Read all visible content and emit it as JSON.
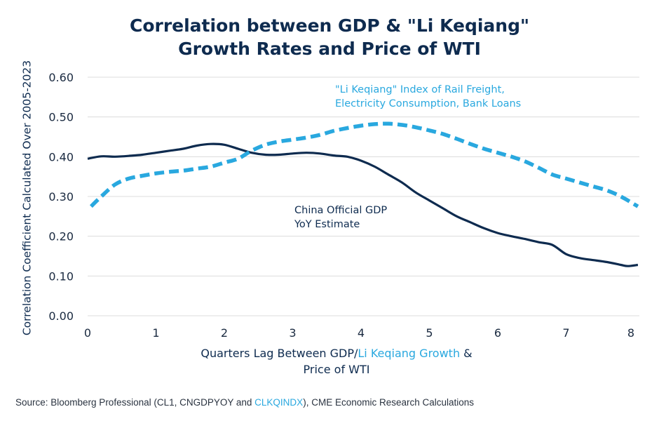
{
  "colors": {
    "navy": "#0e2b4f",
    "cyan": "#29a8df",
    "grid": "#dcdcdc"
  },
  "chart_data": {
    "type": "line",
    "title_line1": "Correlation between GDP & \"Li Keqiang\"",
    "title_line2": "Growth Rates and Price of WTI",
    "xlabel_part1": "Quarters Lag Between GDP/",
    "xlabel_highlight": "Li Keqiang Growth",
    "xlabel_part2": " &",
    "xlabel_line2": "Price of WTI",
    "ylabel": "Correlation Coefficient Calculated Over 2005-2023",
    "xlim": [
      0,
      8
    ],
    "ylim": [
      0,
      0.6
    ],
    "x_ticks": [
      "0",
      "1",
      "2",
      "3",
      "4",
      "5",
      "6",
      "7",
      "8"
    ],
    "y_ticks": [
      "0.00",
      "0.10",
      "0.20",
      "0.30",
      "0.40",
      "0.50",
      "0.60"
    ],
    "grid": true,
    "series": [
      {
        "name_line1": "China Official GDP",
        "name_line2": "YoY Estimate",
        "style": "solid",
        "color": "#0e2b4f",
        "x": [
          0,
          0.2,
          0.4,
          0.6,
          0.8,
          1.0,
          1.2,
          1.4,
          1.6,
          1.8,
          2.0,
          2.2,
          2.4,
          2.6,
          2.8,
          3.0,
          3.2,
          3.4,
          3.6,
          3.8,
          4.0,
          4.2,
          4.4,
          4.6,
          4.8,
          5.0,
          5.2,
          5.4,
          5.6,
          5.8,
          6.0,
          6.2,
          6.4,
          6.6,
          6.8,
          7.0,
          7.2,
          7.4,
          7.6,
          7.8,
          7.9,
          8.05
        ],
        "y": [
          0.395,
          0.401,
          0.4,
          0.402,
          0.405,
          0.41,
          0.415,
          0.42,
          0.428,
          0.432,
          0.43,
          0.42,
          0.41,
          0.405,
          0.405,
          0.408,
          0.41,
          0.408,
          0.403,
          0.4,
          0.39,
          0.375,
          0.355,
          0.335,
          0.31,
          0.29,
          0.27,
          0.25,
          0.235,
          0.22,
          0.208,
          0.2,
          0.193,
          0.185,
          0.178,
          0.155,
          0.145,
          0.14,
          0.135,
          0.128,
          0.125,
          0.128
        ]
      },
      {
        "name_line1": "\"Li Keqiang\" Index of Rail Freight,",
        "name_line2": "Electricity Consumption, Bank Loans",
        "style": "dashed",
        "color": "#29a8df",
        "x": [
          0.05,
          0.2,
          0.4,
          0.6,
          0.8,
          1.0,
          1.2,
          1.4,
          1.6,
          1.8,
          2.0,
          2.2,
          2.4,
          2.6,
          2.8,
          3.0,
          3.2,
          3.4,
          3.6,
          3.8,
          4.0,
          4.2,
          4.4,
          4.6,
          4.8,
          5.0,
          5.2,
          5.4,
          5.6,
          5.8,
          6.0,
          6.2,
          6.4,
          6.6,
          6.8,
          7.0,
          7.2,
          7.4,
          7.6,
          7.8,
          8.05
        ],
        "y": [
          0.275,
          0.3,
          0.33,
          0.345,
          0.352,
          0.358,
          0.362,
          0.365,
          0.37,
          0.375,
          0.385,
          0.395,
          0.415,
          0.43,
          0.438,
          0.443,
          0.448,
          0.455,
          0.465,
          0.472,
          0.478,
          0.482,
          0.483,
          0.48,
          0.474,
          0.466,
          0.457,
          0.445,
          0.432,
          0.42,
          0.41,
          0.4,
          0.388,
          0.372,
          0.355,
          0.345,
          0.335,
          0.325,
          0.315,
          0.3,
          0.275
        ]
      }
    ]
  },
  "source": {
    "part1": "Source: Bloomberg Professional (CL1, CNGDPYOY and ",
    "highlight": "CLKQINDX",
    "part2": "), CME Economic Research Calculations"
  }
}
